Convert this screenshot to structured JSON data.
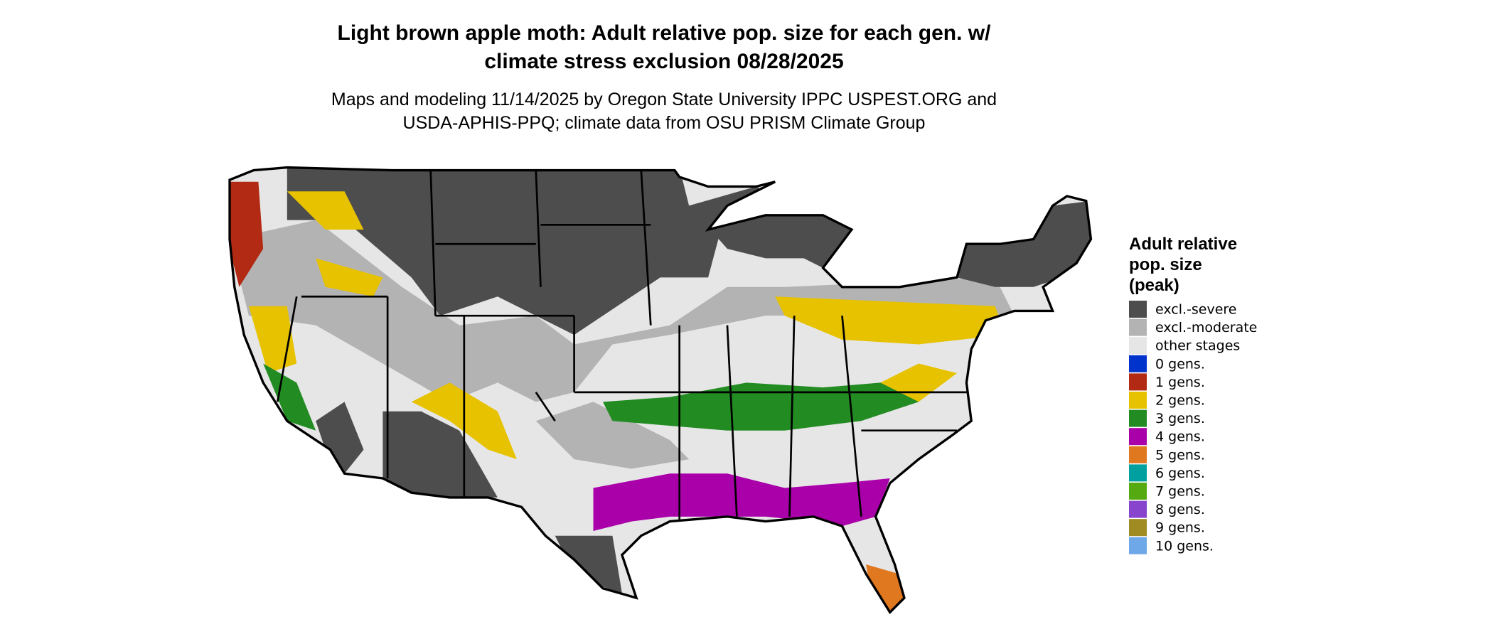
{
  "header": {
    "title_lines": [
      "Light brown apple moth: Adult relative pop. size for each gen. w/",
      "climate stress exclusion 08/28/2025"
    ],
    "subtitle_lines": [
      "Maps and modeling 11/14/2025 by Oregon State University IPPC USPEST.ORG and",
      "USDA-APHIS-PPQ; climate data from OSU PRISM Climate Group"
    ]
  },
  "legend": {
    "title_lines": [
      "Adult relative",
      "pop. size",
      "(peak)"
    ],
    "items": [
      {
        "label": "excl.-severe",
        "color": "#4d4d4d"
      },
      {
        "label": "excl.-moderate",
        "color": "#b3b3b3"
      },
      {
        "label": "other stages",
        "color": "#e6e6e6"
      },
      {
        "label": "0 gens.",
        "color": "#0033cc"
      },
      {
        "label": "1 gens.",
        "color": "#b22a14"
      },
      {
        "label": "2 gens.",
        "color": "#e6c200"
      },
      {
        "label": "3 gens.",
        "color": "#228b22"
      },
      {
        "label": "4 gens.",
        "color": "#aa00aa"
      },
      {
        "label": "5 gens.",
        "color": "#e07820"
      },
      {
        "label": "6 gens.",
        "color": "#00a0a0"
      },
      {
        "label": "7 gens.",
        "color": "#55aa11"
      },
      {
        "label": "8 gens.",
        "color": "#8844cc"
      },
      {
        "label": "9 gens.",
        "color": "#a08a22"
      },
      {
        "label": "10 gens.",
        "color": "#6fa8e8"
      }
    ]
  }
}
